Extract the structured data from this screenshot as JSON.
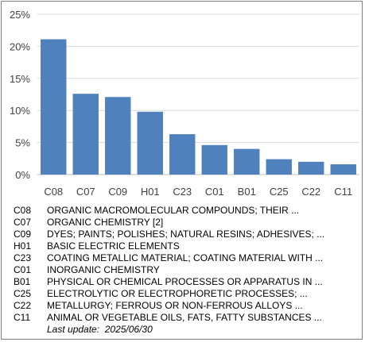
{
  "chart_data": {
    "type": "bar",
    "categories": [
      "C08",
      "C07",
      "C09",
      "H01",
      "C23",
      "C01",
      "B01",
      "C25",
      "C22",
      "C11"
    ],
    "values": [
      21.1,
      12.6,
      12.1,
      9.8,
      6.3,
      4.6,
      4.0,
      2.4,
      2.0,
      1.6
    ],
    "ylim": [
      0,
      25
    ],
    "ytick_labels": [
      "0%",
      "5%",
      "10%",
      "15%",
      "20%",
      "25%"
    ],
    "grid": true,
    "bar_color": "#4f81bd",
    "title": "",
    "xlabel": "",
    "ylabel": ""
  },
  "legend": [
    {
      "code": "C08",
      "label": "ORGANIC MACROMOLECULAR COMPOUNDS; THEIR ..."
    },
    {
      "code": "C07",
      "label": "ORGANIC CHEMISTRY [2]"
    },
    {
      "code": "C09",
      "label": "DYES; PAINTS; POLISHES; NATURAL RESINS; ADHESIVES; ..."
    },
    {
      "code": "H01",
      "label": "BASIC ELECTRIC ELEMENTS"
    },
    {
      "code": "C23",
      "label": "COATING METALLIC MATERIAL; COATING MATERIAL WITH ..."
    },
    {
      "code": "C01",
      "label": "INORGANIC CHEMISTRY"
    },
    {
      "code": "B01",
      "label": "PHYSICAL OR CHEMICAL PROCESSES OR APPARATUS IN ..."
    },
    {
      "code": "C25",
      "label": "ELECTROLYTIC OR ELECTROPHORETIC PROCESSES; ..."
    },
    {
      "code": "C22",
      "label": "METALLURGY; FERROUS OR NON-FERROUS ALLOYS ..."
    },
    {
      "code": "C11",
      "label": "ANIMAL OR VEGETABLE OILS, FATS, FATTY SUBSTANCES ..."
    }
  ],
  "last_update": "Last update:  2025/06/30"
}
